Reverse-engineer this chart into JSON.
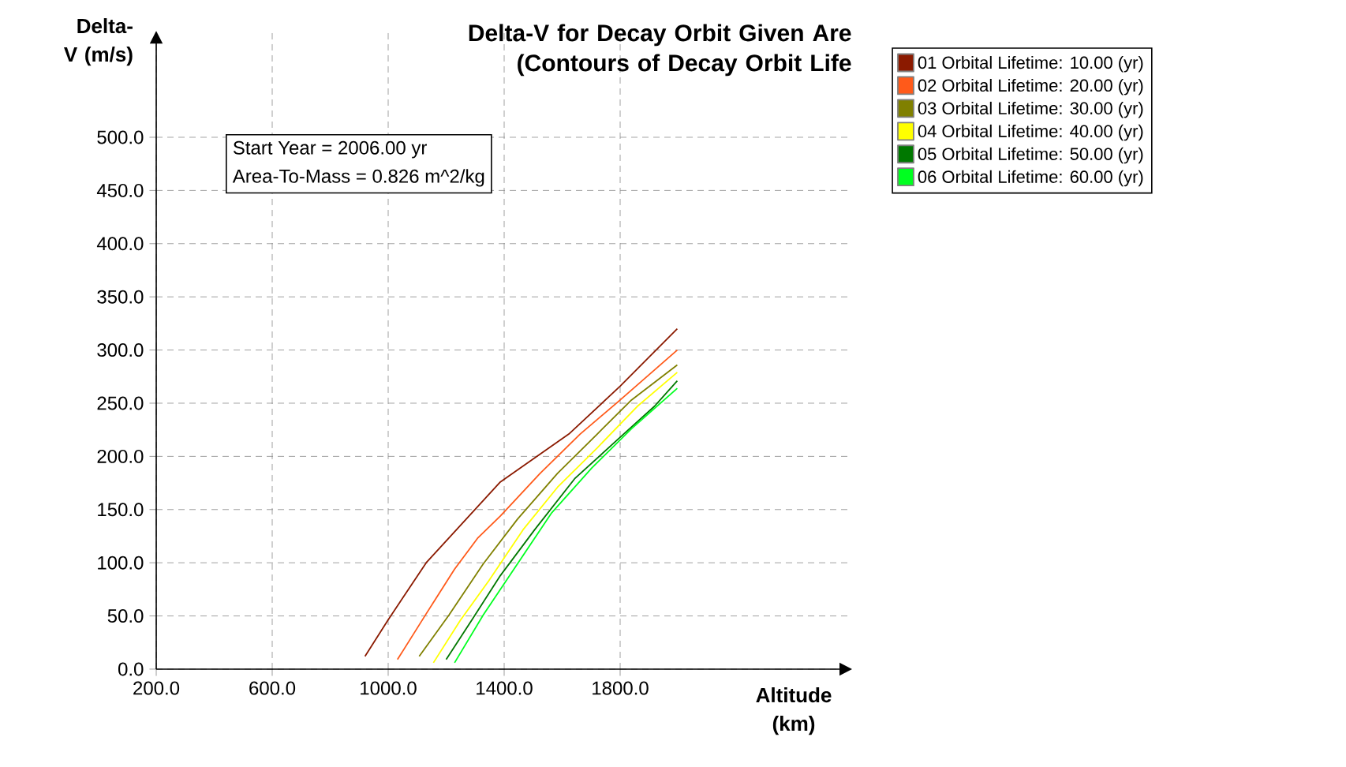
{
  "chart_data": {
    "type": "line",
    "title": "Delta-V for Decay Orbit Given Are",
    "subtitle": "(Contours of Decay Orbit Life",
    "xlabel": "Altitude (km)",
    "ylabel": "Delta-V (m/s)",
    "annotations": [
      "Start Year = 2006.00 yr",
      "Area-To-Mass = 0.826 m^2/kg"
    ],
    "xlim": [
      200,
      2600
    ],
    "ylim": [
      0,
      600
    ],
    "xticks": [
      {
        "value": 200,
        "label": "200.0"
      },
      {
        "value": 600,
        "label": "600.0"
      },
      {
        "value": 1000,
        "label": "1000.0"
      },
      {
        "value": 1400,
        "label": "1400.0"
      },
      {
        "value": 1800,
        "label": "1800.0"
      }
    ],
    "yticks": [
      {
        "value": 0,
        "label": "0.0"
      },
      {
        "value": 50,
        "label": "50.0"
      },
      {
        "value": 100,
        "label": "100.0"
      },
      {
        "value": 150,
        "label": "150.0"
      },
      {
        "value": 200,
        "label": "200.0"
      },
      {
        "value": 250,
        "label": "250.0"
      },
      {
        "value": 300,
        "label": "300.0"
      },
      {
        "value": 350,
        "label": "350.0"
      },
      {
        "value": 400,
        "label": "400.0"
      },
      {
        "value": 450,
        "label": "450.0"
      },
      {
        "value": 500,
        "label": "500.0"
      }
    ],
    "grid": true,
    "legend": "right",
    "marker": "none",
    "line_style": "solid",
    "series": [
      {
        "name": "01 Orbital Lifetime: 10.00 (yr)",
        "color": "#8b1a00",
        "x": [
          920,
          999,
          1131,
          1269,
          1387,
          1623,
          1800,
          1997
        ],
        "values": [
          12,
          46,
          100,
          141,
          176,
          221,
          266,
          320
        ]
      },
      {
        "name": "02 Orbital Lifetime: 20.00 (yr)",
        "color": "#ff5a1a",
        "x": [
          1032,
          1131,
          1229,
          1308,
          1387,
          1524,
          1662,
          1800,
          1997
        ],
        "values": [
          9,
          52,
          94,
          123,
          144,
          184,
          221,
          253,
          300
        ]
      },
      {
        "name": "03 Orbital Lifetime: 30.00 (yr)",
        "color": "#808000",
        "x": [
          1107,
          1210,
          1328,
          1446,
          1584,
          1721,
          1839,
          1997
        ],
        "values": [
          12,
          51,
          99,
          141,
          184,
          221,
          253,
          286
        ]
      },
      {
        "name": "04 Orbital Lifetime: 40.00 (yr)",
        "color": "#ffff00",
        "x": [
          1156,
          1249,
          1347,
          1465,
          1584,
          1721,
          1859,
          1997
        ],
        "values": [
          6,
          46,
          83,
          131,
          171,
          208,
          247,
          279
        ]
      },
      {
        "name": "05 Orbital Lifetime: 50.00 (yr)",
        "color": "#007800",
        "x": [
          1200,
          1288,
          1387,
          1505,
          1643,
          1800,
          1918,
          1997
        ],
        "values": [
          9,
          46,
          88,
          131,
          179,
          218,
          247,
          271
        ]
      },
      {
        "name": "06 Orbital Lifetime: 60.00 (yr)",
        "color": "#00ff20",
        "x": [
          1229,
          1328,
          1446,
          1564,
          1702,
          1839,
          1997
        ],
        "values": [
          6,
          51,
          99,
          147,
          189,
          226,
          264
        ]
      }
    ]
  }
}
